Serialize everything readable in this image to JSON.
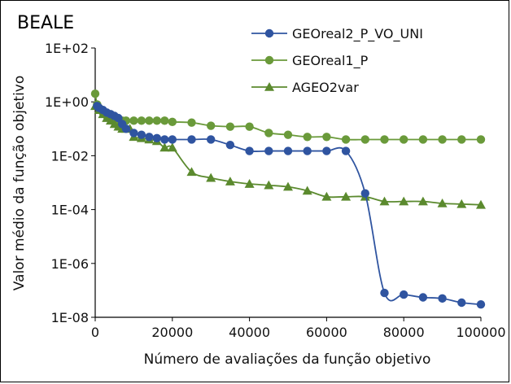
{
  "chart_data": {
    "type": "line",
    "title": "BEALE",
    "xlabel": "Número de avaliações da função objetivo",
    "ylabel": "Valor médio da função objetivo",
    "yscale": "log",
    "xlim": [
      0,
      100000
    ],
    "ylim": [
      1e-08,
      100
    ],
    "x_ticks": [
      0,
      20000,
      40000,
      60000,
      80000,
      100000
    ],
    "x_tick_labels": [
      "0",
      "20000",
      "40000",
      "60000",
      "80000",
      "100000"
    ],
    "y_ticks": [
      1e-08,
      1e-06,
      0.0001,
      0.01,
      1,
      100
    ],
    "y_tick_labels": [
      "1E-08",
      "1E-06",
      "1E-04",
      "1E-02",
      "1E+00",
      "1E+02"
    ],
    "grid": false,
    "legend_position": "top-right",
    "series": [
      {
        "name": "GEOreal2_P_VO_UNI",
        "color": "#2f54a0",
        "marker": "circle",
        "x": [
          500,
          1000,
          2000,
          3000,
          4000,
          5000,
          6000,
          7000,
          8000,
          10000,
          12000,
          14000,
          16000,
          18000,
          20000,
          25000,
          30000,
          35000,
          40000,
          45000,
          50000,
          55000,
          60000,
          65000,
          70000,
          75000,
          80000,
          85000,
          90000,
          95000,
          100000
        ],
        "y": [
          0.7,
          0.6,
          0.5,
          0.4,
          0.35,
          0.3,
          0.25,
          0.15,
          0.1,
          0.07,
          0.06,
          0.05,
          0.045,
          0.04,
          0.04,
          0.04,
          0.04,
          0.025,
          0.015,
          0.015,
          0.015,
          0.015,
          0.015,
          0.015,
          0.0004,
          8e-08,
          7e-08,
          5.5e-08,
          5e-08,
          3.5e-08,
          3e-08
        ]
      },
      {
        "name": "GEOreal1_P",
        "color": "#6a9a3a",
        "marker": "circle",
        "x": [
          0,
          500,
          1000,
          2000,
          3000,
          4000,
          5000,
          6000,
          7000,
          8000,
          10000,
          12000,
          14000,
          16000,
          18000,
          20000,
          25000,
          30000,
          35000,
          40000,
          45000,
          50000,
          55000,
          60000,
          65000,
          70000,
          75000,
          80000,
          85000,
          90000,
          95000,
          100000
        ],
        "y": [
          2,
          0.8,
          0.6,
          0.4,
          0.3,
          0.25,
          0.22,
          0.2,
          0.2,
          0.2,
          0.2,
          0.2,
          0.2,
          0.2,
          0.2,
          0.18,
          0.17,
          0.13,
          0.12,
          0.12,
          0.07,
          0.06,
          0.05,
          0.05,
          0.04,
          0.04,
          0.04,
          0.04,
          0.04,
          0.04,
          0.04,
          0.04
        ]
      },
      {
        "name": "AGEO2var",
        "color": "#5b8a2e",
        "marker": "triangle",
        "x": [
          0,
          1000,
          2000,
          3000,
          4000,
          5000,
          6000,
          7000,
          8000,
          9000,
          10000,
          12000,
          14000,
          16000,
          18000,
          20000,
          25000,
          30000,
          35000,
          40000,
          45000,
          50000,
          55000,
          60000,
          65000,
          70000,
          75000,
          80000,
          85000,
          90000,
          95000,
          100000
        ],
        "y": [
          0.7,
          0.5,
          0.35,
          0.25,
          0.2,
          0.15,
          0.12,
          0.1,
          0.1,
          0.1,
          0.05,
          0.045,
          0.04,
          0.035,
          0.02,
          0.02,
          0.0025,
          0.0015,
          0.0011,
          0.0009,
          0.0008,
          0.0007,
          0.0005,
          0.0003,
          0.0003,
          0.0003,
          0.0002,
          0.0002,
          0.0002,
          0.00017,
          0.00016,
          0.00015
        ]
      }
    ]
  }
}
